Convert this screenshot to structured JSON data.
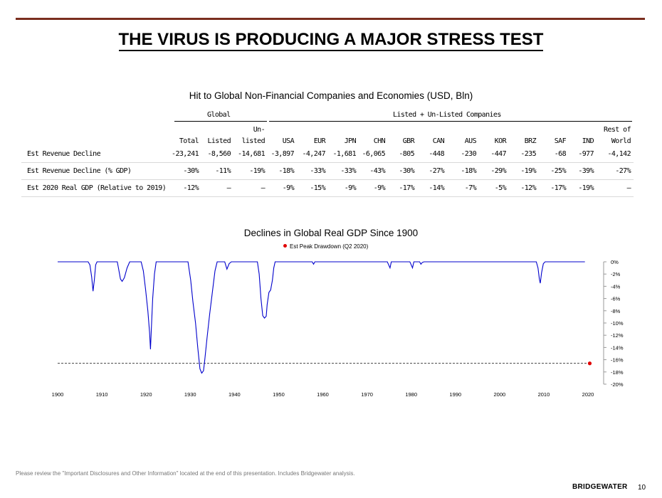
{
  "header": {
    "title": "THE VIRUS IS PRODUCING A MAJOR STRESS TEST"
  },
  "table": {
    "title": "Hit to Global Non-Financial Companies and Economies (USD, Bln)",
    "group_global": "Global",
    "group_listed": "Listed + Un-Listed Companies",
    "columns": [
      {
        "top": "",
        "bottom": "Total"
      },
      {
        "top": "",
        "bottom": "Listed"
      },
      {
        "top": "Un-",
        "bottom": "listed"
      },
      {
        "top": "",
        "bottom": "USA"
      },
      {
        "top": "",
        "bottom": "EUR"
      },
      {
        "top": "",
        "bottom": "JPN"
      },
      {
        "top": "",
        "bottom": "CHN"
      },
      {
        "top": "",
        "bottom": "GBR"
      },
      {
        "top": "",
        "bottom": "CAN"
      },
      {
        "top": "",
        "bottom": "AUS"
      },
      {
        "top": "",
        "bottom": "KOR"
      },
      {
        "top": "",
        "bottom": "BRZ"
      },
      {
        "top": "",
        "bottom": "SAF"
      },
      {
        "top": "",
        "bottom": "IND"
      },
      {
        "top": "Rest of",
        "bottom": "World"
      }
    ],
    "rows": [
      {
        "label": "Est Revenue Decline",
        "values": [
          "-23,241",
          "-8,560",
          "-14,681",
          "-3,897",
          "-4,247",
          "-1,681",
          "-6,065",
          "-805",
          "-448",
          "-230",
          "-447",
          "-235",
          "-68",
          "-977",
          "-4,142"
        ]
      },
      {
        "label": "Est Revenue Decline (% GDP)",
        "values": [
          "-30%",
          "-11%",
          "-19%",
          "-18%",
          "-33%",
          "-33%",
          "-43%",
          "-30%",
          "-27%",
          "-18%",
          "-29%",
          "-19%",
          "-25%",
          "-39%",
          "-27%"
        ]
      },
      {
        "label": "Est 2020 Real GDP (Relative to 2019)",
        "values": [
          "-12%",
          "–",
          "–",
          "-9%",
          "-15%",
          "-9%",
          "-9%",
          "-17%",
          "-14%",
          "-7%",
          "-5%",
          "-12%",
          "-17%",
          "-19%",
          "–"
        ]
      }
    ]
  },
  "chart_data": {
    "type": "line",
    "title": "Declines in Global Real GDP Since 1900",
    "legend": [
      "Est Peak Drawdown (Q2 2020)"
    ],
    "legend_placement": "top-center",
    "xlim": [
      1900,
      2020
    ],
    "ylim": [
      -20,
      0
    ],
    "x_ticks": [
      1900,
      1910,
      1920,
      1930,
      1940,
      1950,
      1960,
      1970,
      1980,
      1990,
      2000,
      2010,
      2020
    ],
    "y_ticks": [
      "0%",
      "-2%",
      "-4%",
      "-6%",
      "-8%",
      "-10%",
      "-12%",
      "-14%",
      "-16%",
      "-18%",
      "-20%"
    ],
    "series": [
      {
        "color": "#0000cc",
        "points": [
          [
            1900,
            0
          ],
          [
            1906.9,
            0
          ],
          [
            1907.3,
            -0.5
          ],
          [
            1907.7,
            -2.5
          ],
          [
            1908.0,
            -4.8
          ],
          [
            1908.3,
            -3.0
          ],
          [
            1908.6,
            -0.5
          ],
          [
            1908.9,
            0
          ],
          [
            1913.5,
            0
          ],
          [
            1913.8,
            -1.2
          ],
          [
            1914.2,
            -2.8
          ],
          [
            1914.6,
            -3.2
          ],
          [
            1915.1,
            -2.6
          ],
          [
            1915.7,
            -1.0
          ],
          [
            1916.3,
            0
          ],
          [
            1918.9,
            0
          ],
          [
            1919.4,
            -1.5
          ],
          [
            1919.9,
            -4.5
          ],
          [
            1920.4,
            -8.0
          ],
          [
            1920.8,
            -11.5
          ],
          [
            1921.0,
            -14.3
          ],
          [
            1921.2,
            -11.0
          ],
          [
            1921.5,
            -6.0
          ],
          [
            1921.9,
            -2.0
          ],
          [
            1922.3,
            0
          ],
          [
            1929.5,
            0
          ],
          [
            1930.1,
            -3.0
          ],
          [
            1930.6,
            -6.5
          ],
          [
            1931.2,
            -10.0
          ],
          [
            1931.7,
            -14.0
          ],
          [
            1932.2,
            -17.5
          ],
          [
            1932.6,
            -18.2
          ],
          [
            1933.0,
            -17.8
          ],
          [
            1933.3,
            -16.0
          ],
          [
            1933.8,
            -12.5
          ],
          [
            1934.4,
            -8.5
          ],
          [
            1935.0,
            -5.0
          ],
          [
            1935.6,
            -1.5
          ],
          [
            1936.1,
            0
          ],
          [
            1937.8,
            0
          ],
          [
            1938.3,
            -1.2
          ],
          [
            1938.8,
            -0.3
          ],
          [
            1939.3,
            0
          ],
          [
            1945.2,
            0
          ],
          [
            1945.6,
            -2.0
          ],
          [
            1946.0,
            -6.0
          ],
          [
            1946.4,
            -8.8
          ],
          [
            1946.8,
            -9.2
          ],
          [
            1947.2,
            -8.9
          ],
          [
            1947.4,
            -7.0
          ],
          [
            1947.8,
            -5.0
          ],
          [
            1948.2,
            -4.6
          ],
          [
            1948.6,
            -3.0
          ],
          [
            1948.9,
            -1.0
          ],
          [
            1949.2,
            0
          ],
          [
            1957.6,
            0
          ],
          [
            1957.9,
            -0.4
          ],
          [
            1958.2,
            0
          ],
          [
            1974.6,
            0
          ],
          [
            1974.9,
            -0.5
          ],
          [
            1975.2,
            -1.0
          ],
          [
            1975.5,
            0
          ],
          [
            1979.7,
            0
          ],
          [
            1980.0,
            -0.5
          ],
          [
            1980.3,
            -1.0
          ],
          [
            1980.6,
            0
          ],
          [
            1981.9,
            0
          ],
          [
            1982.2,
            -0.4
          ],
          [
            1982.5,
            -0.1
          ],
          [
            1982.9,
            0
          ],
          [
            2008.3,
            0
          ],
          [
            2008.7,
            -1.0
          ],
          [
            2009.0,
            -2.8
          ],
          [
            2009.2,
            -3.5
          ],
          [
            2009.5,
            -1.8
          ],
          [
            2009.9,
            -0.3
          ],
          [
            2010.3,
            0
          ],
          [
            2019.3,
            0
          ]
        ]
      },
      {
        "name": "Est Peak Drawdown (Q2 2020)",
        "type": "scatter",
        "color": "#e00000",
        "points": [
          [
            2020.4,
            -16.6
          ]
        ]
      }
    ],
    "reference_line": {
      "y": -16.6,
      "x_from": 1900,
      "x_to": 2020.4,
      "style": "dashed"
    }
  },
  "footer": {
    "disclosure": "Please review the \"Important Disclosures and Other Information\" located at the end of this presentation. Includes Bridgewater analysis.",
    "brand": "BRIDGEWATER",
    "page_number": "10"
  }
}
